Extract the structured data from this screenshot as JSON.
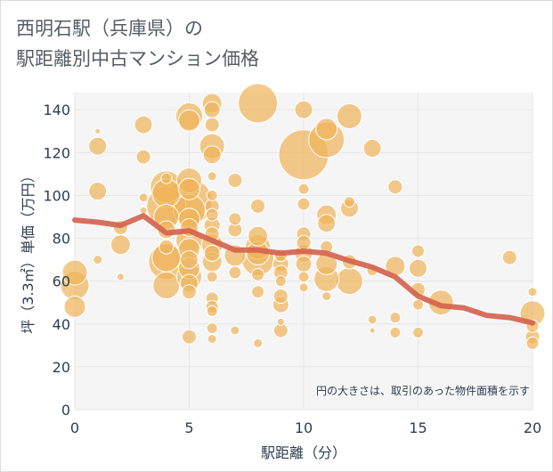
{
  "chart_data": {
    "type": "scatter",
    "title": [
      "西明石駅（兵庫県）の",
      "駅距離別中古マンション価格"
    ],
    "xlabel": "駅距離（分）",
    "ylabel": "坪（3.3㎡）単価（万円）",
    "note": "円の大きさは、取引のあった物件面積を示す",
    "xlim": [
      0,
      20
    ],
    "ylim": [
      0,
      148
    ],
    "xticks": [
      0,
      5,
      10,
      15,
      20
    ],
    "yticks": [
      0,
      20,
      40,
      60,
      80,
      100,
      120,
      140
    ],
    "grid": true,
    "colors": {
      "bubble_fill": "#f0b45a",
      "bubble_stroke": "#ffffff",
      "line": "#d4604d",
      "grid": "#e6e6e6",
      "plot_bg": "#f5f5f5"
    },
    "series": [
      {
        "type": "line",
        "x": [
          0,
          1,
          2,
          3,
          4,
          5,
          6,
          7,
          8,
          9,
          10,
          11,
          12,
          13,
          14,
          15,
          16,
          17,
          18,
          19,
          20
        ],
        "y": [
          88.5,
          87.5,
          86,
          90.5,
          82.5,
          83.5,
          79,
          74.5,
          74.5,
          73,
          74,
          73,
          69.5,
          66.5,
          62,
          53,
          48.5,
          47.5,
          44,
          43,
          40.5
        ]
      },
      {
        "type": "scatter",
        "points": [
          {
            "x": 0,
            "y": 64,
            "s": 14
          },
          {
            "x": 0,
            "y": 58,
            "s": 16
          },
          {
            "x": 0,
            "y": 48,
            "s": 12
          },
          {
            "x": 1,
            "y": 130,
            "s": 3
          },
          {
            "x": 1,
            "y": 123,
            "s": 10
          },
          {
            "x": 1,
            "y": 102,
            "s": 10
          },
          {
            "x": 1,
            "y": 70,
            "s": 5
          },
          {
            "x": 2,
            "y": 85,
            "s": 8
          },
          {
            "x": 2,
            "y": 77,
            "s": 11
          },
          {
            "x": 2,
            "y": 62,
            "s": 4
          },
          {
            "x": 3,
            "y": 133,
            "s": 10
          },
          {
            "x": 3,
            "y": 118,
            "s": 8
          },
          {
            "x": 3,
            "y": 99,
            "s": 5
          },
          {
            "x": 3,
            "y": 93,
            "s": 4
          },
          {
            "x": 4,
            "y": 104,
            "s": 18
          },
          {
            "x": 4,
            "y": 101,
            "s": 16
          },
          {
            "x": 4,
            "y": 95,
            "s": 22
          },
          {
            "x": 4,
            "y": 90,
            "s": 14
          },
          {
            "x": 4,
            "y": 84,
            "s": 10
          },
          {
            "x": 4,
            "y": 76,
            "s": 8
          },
          {
            "x": 4,
            "y": 71,
            "s": 16
          },
          {
            "x": 4,
            "y": 69,
            "s": 20
          },
          {
            "x": 4,
            "y": 58,
            "s": 15
          },
          {
            "x": 4,
            "y": 108,
            "s": 6
          },
          {
            "x": 5,
            "y": 137,
            "s": 15
          },
          {
            "x": 5,
            "y": 135,
            "s": 12
          },
          {
            "x": 5,
            "y": 107,
            "s": 14
          },
          {
            "x": 5,
            "y": 103,
            "s": 12
          },
          {
            "x": 5,
            "y": 97,
            "s": 26
          },
          {
            "x": 5,
            "y": 93,
            "s": 18
          },
          {
            "x": 5,
            "y": 89,
            "s": 12
          },
          {
            "x": 5,
            "y": 85,
            "s": 10
          },
          {
            "x": 5,
            "y": 79,
            "s": 15
          },
          {
            "x": 5,
            "y": 75,
            "s": 12
          },
          {
            "x": 5,
            "y": 70,
            "s": 10
          },
          {
            "x": 5,
            "y": 66,
            "s": 12
          },
          {
            "x": 5,
            "y": 62,
            "s": 14
          },
          {
            "x": 5,
            "y": 59,
            "s": 10
          },
          {
            "x": 5,
            "y": 55,
            "s": 8
          },
          {
            "x": 5,
            "y": 34,
            "s": 8
          },
          {
            "x": 6,
            "y": 143,
            "s": 11
          },
          {
            "x": 6,
            "y": 140,
            "s": 9
          },
          {
            "x": 6,
            "y": 133,
            "s": 8
          },
          {
            "x": 6,
            "y": 123,
            "s": 14
          },
          {
            "x": 6,
            "y": 119,
            "s": 10
          },
          {
            "x": 6,
            "y": 109,
            "s": 5
          },
          {
            "x": 6,
            "y": 100,
            "s": 6
          },
          {
            "x": 6,
            "y": 95,
            "s": 8
          },
          {
            "x": 6,
            "y": 91,
            "s": 7
          },
          {
            "x": 6,
            "y": 86,
            "s": 9
          },
          {
            "x": 6,
            "y": 82,
            "s": 8
          },
          {
            "x": 6,
            "y": 77,
            "s": 12
          },
          {
            "x": 6,
            "y": 73,
            "s": 9
          },
          {
            "x": 6,
            "y": 69,
            "s": 11
          },
          {
            "x": 6,
            "y": 62,
            "s": 6
          },
          {
            "x": 6,
            "y": 52,
            "s": 7
          },
          {
            "x": 6,
            "y": 48,
            "s": 7
          },
          {
            "x": 6,
            "y": 46,
            "s": 6
          },
          {
            "x": 6,
            "y": 38,
            "s": 6
          },
          {
            "x": 6,
            "y": 33,
            "s": 5
          },
          {
            "x": 7,
            "y": 107,
            "s": 8
          },
          {
            "x": 7,
            "y": 89,
            "s": 7
          },
          {
            "x": 7,
            "y": 84,
            "s": 8
          },
          {
            "x": 7,
            "y": 72,
            "s": 12
          },
          {
            "x": 7,
            "y": 64,
            "s": 7
          },
          {
            "x": 7,
            "y": 37,
            "s": 5
          },
          {
            "x": 8,
            "y": 143,
            "s": 22
          },
          {
            "x": 8,
            "y": 95,
            "s": 8
          },
          {
            "x": 8,
            "y": 81,
            "s": 11
          },
          {
            "x": 8,
            "y": 76,
            "s": 14
          },
          {
            "x": 8,
            "y": 73,
            "s": 13
          },
          {
            "x": 8,
            "y": 70,
            "s": 18
          },
          {
            "x": 8,
            "y": 63,
            "s": 7
          },
          {
            "x": 8,
            "y": 55,
            "s": 7
          },
          {
            "x": 8,
            "y": 31,
            "s": 5
          },
          {
            "x": 9,
            "y": 72,
            "s": 7
          },
          {
            "x": 9,
            "y": 68,
            "s": 9
          },
          {
            "x": 9,
            "y": 64,
            "s": 8
          },
          {
            "x": 9,
            "y": 60,
            "s": 6
          },
          {
            "x": 9,
            "y": 53,
            "s": 8
          },
          {
            "x": 9,
            "y": 49,
            "s": 9
          },
          {
            "x": 9,
            "y": 41,
            "s": 4
          },
          {
            "x": 9,
            "y": 37,
            "s": 8
          },
          {
            "x": 10,
            "y": 140,
            "s": 10
          },
          {
            "x": 10,
            "y": 119,
            "s": 28
          },
          {
            "x": 10,
            "y": 103,
            "s": 6
          },
          {
            "x": 10,
            "y": 96,
            "s": 7
          },
          {
            "x": 10,
            "y": 82,
            "s": 8
          },
          {
            "x": 10,
            "y": 78,
            "s": 8
          },
          {
            "x": 10,
            "y": 73,
            "s": 10
          },
          {
            "x": 10,
            "y": 68,
            "s": 9
          },
          {
            "x": 10,
            "y": 62,
            "s": 6
          },
          {
            "x": 10,
            "y": 57,
            "s": 5
          },
          {
            "x": 11,
            "y": 126,
            "s": 20
          },
          {
            "x": 11,
            "y": 131,
            "s": 12
          },
          {
            "x": 11,
            "y": 91,
            "s": 11
          },
          {
            "x": 11,
            "y": 87,
            "s": 10
          },
          {
            "x": 11,
            "y": 76,
            "s": 7
          },
          {
            "x": 11,
            "y": 68,
            "s": 12
          },
          {
            "x": 11,
            "y": 61,
            "s": 14
          },
          {
            "x": 11,
            "y": 53,
            "s": 5
          },
          {
            "x": 12,
            "y": 137,
            "s": 14
          },
          {
            "x": 12,
            "y": 97,
            "s": 6
          },
          {
            "x": 12,
            "y": 94,
            "s": 10
          },
          {
            "x": 12,
            "y": 69,
            "s": 8
          },
          {
            "x": 12,
            "y": 60,
            "s": 15
          },
          {
            "x": 13,
            "y": 122,
            "s": 10
          },
          {
            "x": 13,
            "y": 65,
            "s": 6
          },
          {
            "x": 13,
            "y": 42,
            "s": 5
          },
          {
            "x": 13,
            "y": 37,
            "s": 3
          },
          {
            "x": 14,
            "y": 104,
            "s": 8
          },
          {
            "x": 14,
            "y": 67,
            "s": 11
          },
          {
            "x": 14,
            "y": 43,
            "s": 6
          },
          {
            "x": 14,
            "y": 36,
            "s": 6
          },
          {
            "x": 15,
            "y": 74,
            "s": 7
          },
          {
            "x": 15,
            "y": 66,
            "s": 10
          },
          {
            "x": 15,
            "y": 56,
            "s": 8
          },
          {
            "x": 15,
            "y": 49,
            "s": 6
          },
          {
            "x": 15,
            "y": 36,
            "s": 6
          },
          {
            "x": 16,
            "y": 50,
            "s": 14
          },
          {
            "x": 19,
            "y": 71,
            "s": 8
          },
          {
            "x": 20,
            "y": 55,
            "s": 5
          },
          {
            "x": 20,
            "y": 45,
            "s": 14
          },
          {
            "x": 20,
            "y": 39,
            "s": 7
          },
          {
            "x": 20,
            "y": 34,
            "s": 8
          },
          {
            "x": 20,
            "y": 31,
            "s": 7
          }
        ]
      }
    ]
  }
}
